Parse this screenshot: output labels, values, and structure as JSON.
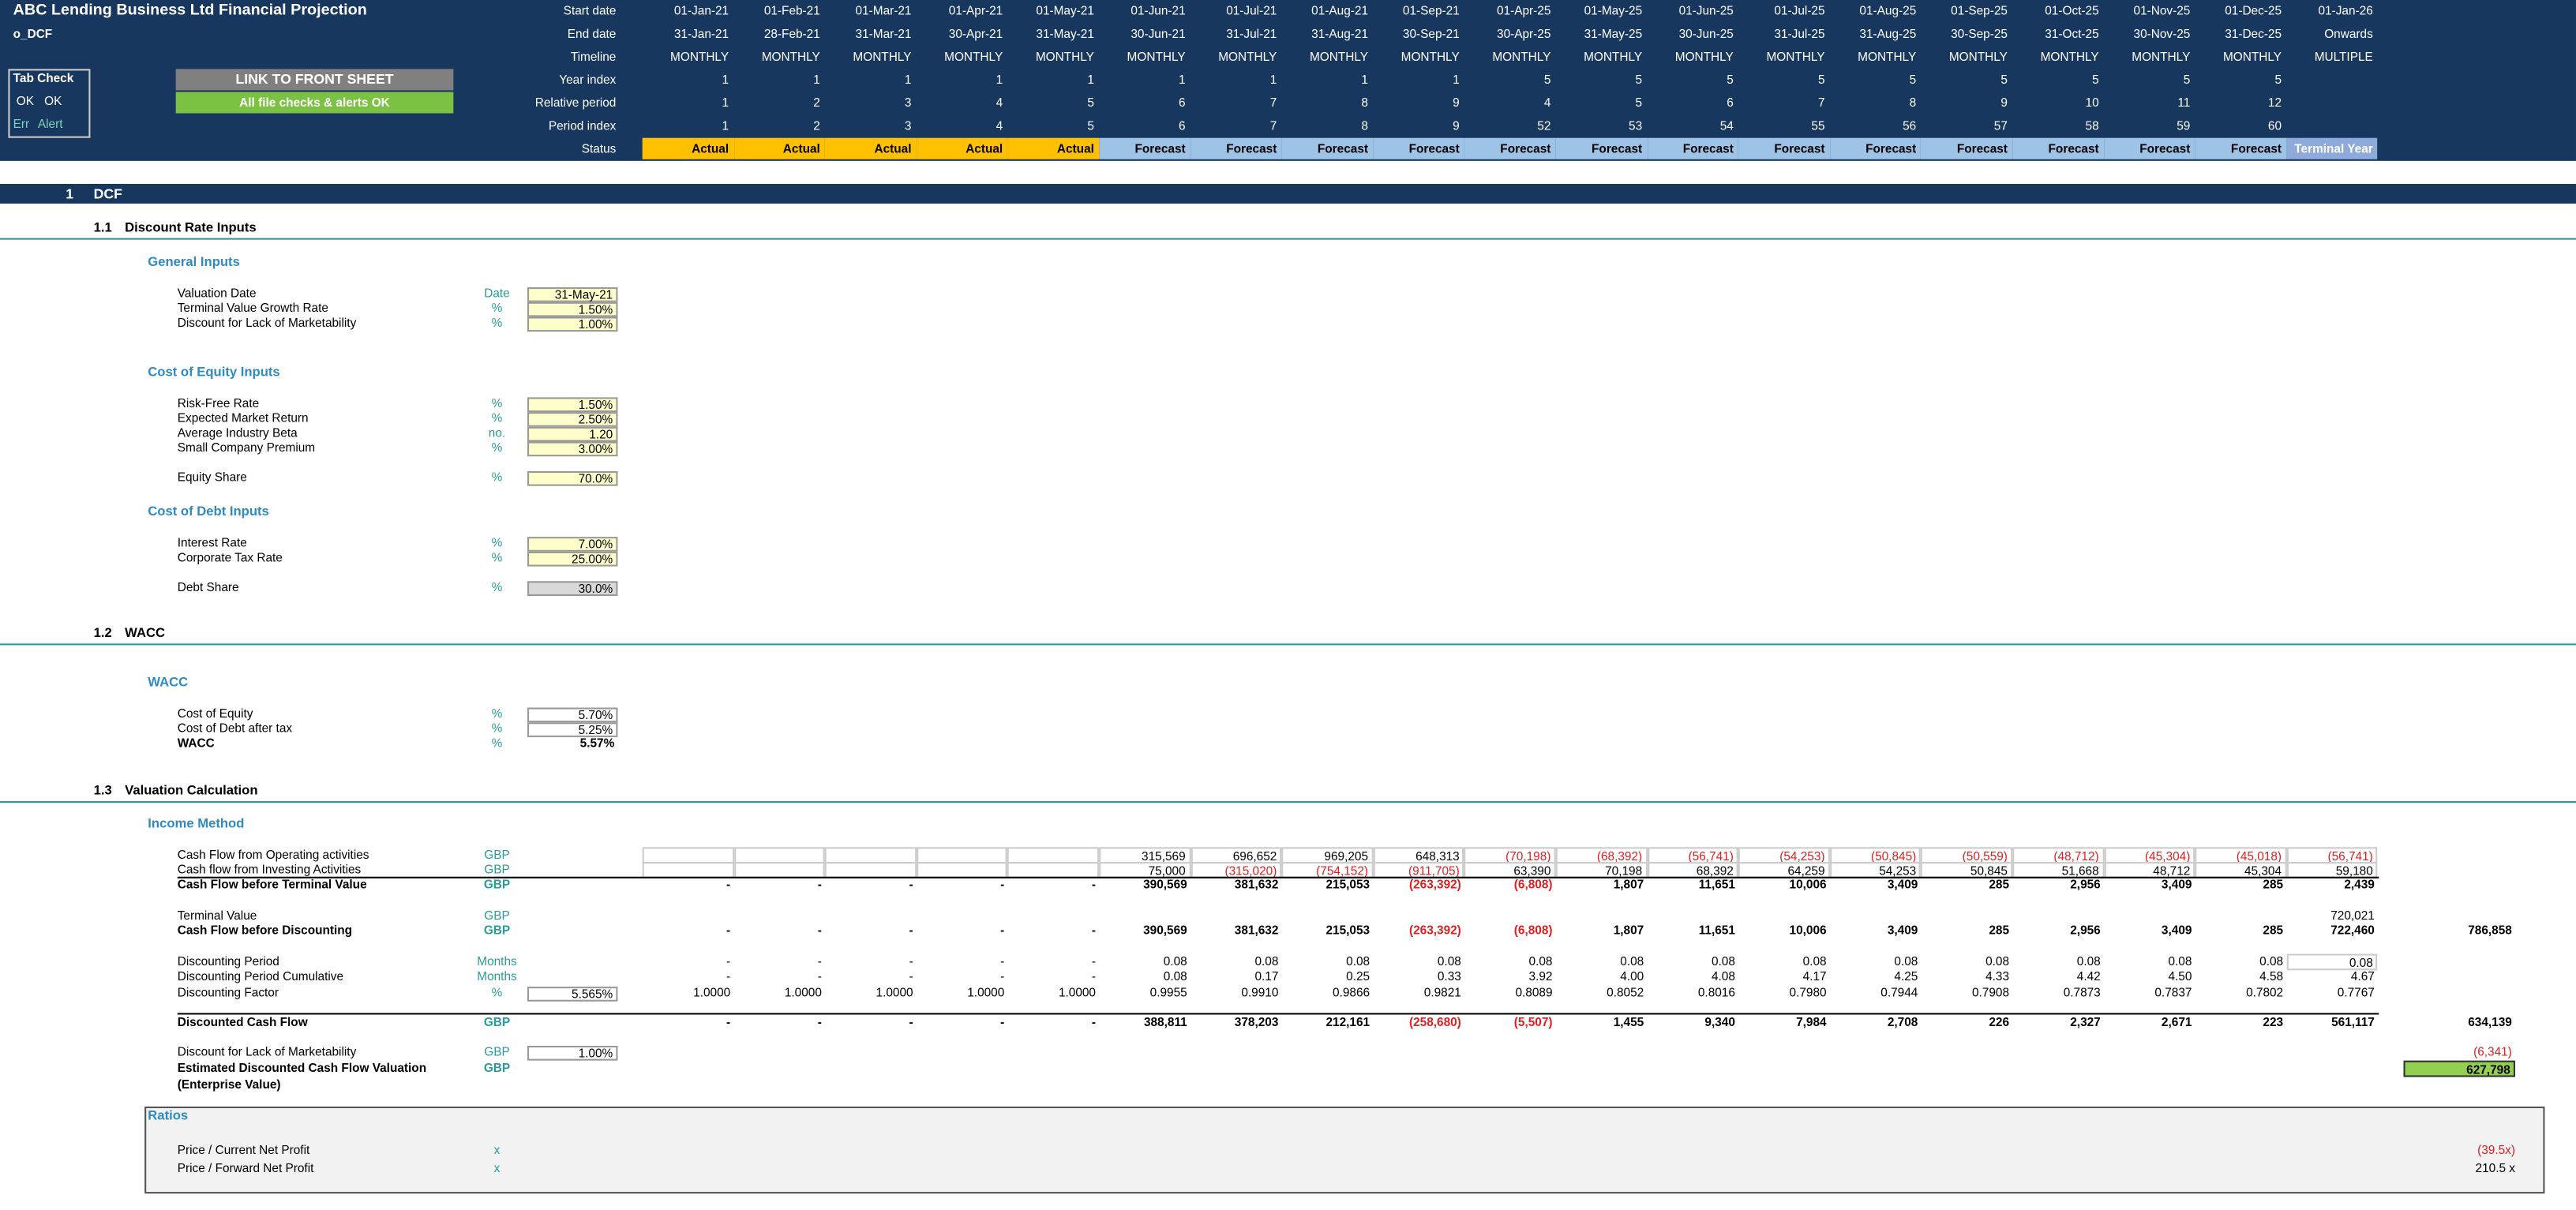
{
  "header": {
    "title": "ABC Lending Business Ltd Financial Projection",
    "sheet": "o_DCF",
    "tab_check": {
      "title": "Tab Check",
      "row1": [
        "OK",
        "OK"
      ],
      "row2": [
        "Err",
        "Alert"
      ]
    },
    "link_button": "LINK TO FRONT SHEET",
    "checks_status": "All file checks & alerts OK"
  },
  "timeline": {
    "rows": [
      {
        "label": "Start date",
        "values": [
          "01-Jan-21",
          "01-Feb-21",
          "01-Mar-21",
          "01-Apr-21",
          "01-May-21",
          "01-Jun-21",
          "01-Jul-21",
          "01-Aug-21",
          "01-Sep-21",
          "01-Apr-25",
          "01-May-25",
          "01-Jun-25",
          "01-Jul-25",
          "01-Aug-25",
          "01-Sep-25",
          "01-Oct-25",
          "01-Nov-25",
          "01-Dec-25",
          "01-Jan-26"
        ]
      },
      {
        "label": "End date",
        "values": [
          "31-Jan-21",
          "28-Feb-21",
          "31-Mar-21",
          "30-Apr-21",
          "31-May-21",
          "30-Jun-21",
          "31-Jul-21",
          "31-Aug-21",
          "30-Sep-21",
          "30-Apr-25",
          "31-May-25",
          "30-Jun-25",
          "31-Jul-25",
          "31-Aug-25",
          "30-Sep-25",
          "31-Oct-25",
          "30-Nov-25",
          "31-Dec-25",
          "Onwards"
        ]
      },
      {
        "label": "Timeline",
        "values": [
          "MONTHLY",
          "MONTHLY",
          "MONTHLY",
          "MONTHLY",
          "MONTHLY",
          "MONTHLY",
          "MONTHLY",
          "MONTHLY",
          "MONTHLY",
          "MONTHLY",
          "MONTHLY",
          "MONTHLY",
          "MONTHLY",
          "MONTHLY",
          "MONTHLY",
          "MONTHLY",
          "MONTHLY",
          "MONTHLY",
          "MULTIPLE"
        ]
      },
      {
        "label": "Year index",
        "values": [
          1,
          1,
          1,
          1,
          1,
          1,
          1,
          1,
          1,
          5,
          5,
          5,
          5,
          5,
          5,
          5,
          5,
          5,
          null
        ]
      },
      {
        "label": "Relative period",
        "values": [
          1,
          2,
          3,
          4,
          5,
          6,
          7,
          8,
          9,
          4,
          5,
          6,
          7,
          8,
          9,
          10,
          11,
          12,
          null
        ]
      },
      {
        "label": "Period index",
        "values": [
          1,
          2,
          3,
          4,
          5,
          6,
          7,
          8,
          9,
          52,
          53,
          54,
          55,
          56,
          57,
          58,
          59,
          60,
          null
        ]
      },
      {
        "label": "Status",
        "values": [
          "Actual",
          "Actual",
          "Actual",
          "Actual",
          "Actual",
          "Forecast",
          "Forecast",
          "Forecast",
          "Forecast",
          "Forecast",
          "Forecast",
          "Forecast",
          "Forecast",
          "Forecast",
          "Forecast",
          "Forecast",
          "Forecast",
          "Forecast",
          "Terminal Year"
        ]
      }
    ]
  },
  "section": {
    "number": "1",
    "title": "DCF"
  },
  "subsections": [
    {
      "number": "1.1",
      "title": "Discount Rate Inputs",
      "groups": [
        {
          "title": "General Inputs",
          "items": [
            {
              "label": "Valuation Date",
              "unit": "Date",
              "value": "31-May-21"
            },
            {
              "label": "Terminal Value Growth Rate",
              "unit": "%",
              "value": "1.50%"
            },
            {
              "label": "Discount for Lack of Marketability",
              "unit": "%",
              "value": "1.00%"
            }
          ]
        },
        {
          "title": "Cost of Equity Inputs",
          "items": [
            {
              "label": "Risk-Free Rate",
              "unit": "%",
              "value": "1.50%"
            },
            {
              "label": "Expected Market Return",
              "unit": "%",
              "value": "2.50%"
            },
            {
              "label": "Average Industry Beta",
              "unit": "no.",
              "value": "1.20"
            },
            {
              "label": "Small Company Premium",
              "unit": "%",
              "value": "3.00%"
            },
            {
              "label": "Equity Share",
              "unit": "%",
              "value": "70.0%"
            }
          ]
        },
        {
          "title": "Cost of Debt Inputs",
          "items": [
            {
              "label": "Interest Rate",
              "unit": "%",
              "value": "7.00%"
            },
            {
              "label": "Corporate Tax Rate",
              "unit": "%",
              "value": "25.00%"
            },
            {
              "label": "Debt Share",
              "unit": "%",
              "value": "30.0%"
            }
          ]
        }
      ]
    },
    {
      "number": "1.2",
      "title": "WACC",
      "groups": [
        {
          "title": "WACC",
          "items": [
            {
              "label": "Cost of Equity",
              "unit": "%",
              "value": "5.70%"
            },
            {
              "label": "Cost of Debt after tax",
              "unit": "%",
              "value": "5.25%"
            },
            {
              "label": "WACC",
              "unit": "%",
              "value": "5.57%"
            }
          ]
        }
      ]
    },
    {
      "number": "1.3",
      "title": "Valuation Calculation",
      "groups": [
        {
          "title": "Income Method",
          "rows": [
            {
              "label": "Cash Flow from Operating activities",
              "unit": "GBP",
              "values": [
                null,
                null,
                null,
                null,
                null,
                "315,569",
                "696,652",
                "969,205",
                "648,313",
                "(70,198)",
                "(68,392)",
                "(56,741)",
                "(54,253)",
                "(50,845)",
                "(50,559)",
                "(48,712)",
                "(45,304)",
                "(45,018)",
                "(56,741)"
              ]
            },
            {
              "label": "Cash flow from Investing Activities",
              "unit": "GBP",
              "values": [
                null,
                null,
                null,
                null,
                null,
                "75,000",
                "(315,020)",
                "(754,152)",
                "(911,705)",
                "63,390",
                "70,198",
                "68,392",
                "64,259",
                "54,253",
                "50,845",
                "51,668",
                "48,712",
                "45,304",
                "59,180"
              ]
            },
            {
              "label": "Cash Flow before Terminal Value",
              "unit": "GBP",
              "values": [
                "-",
                "-",
                "-",
                "-",
                "-",
                "390,569",
                "381,632",
                "215,053",
                "(263,392)",
                "(6,808)",
                "1,807",
                "11,651",
                "10,006",
                "3,409",
                "285",
                "2,956",
                "3,409",
                "285",
                "2,439"
              ]
            },
            {
              "label": "Terminal Value",
              "unit": "GBP",
              "values": [
                null,
                null,
                null,
                null,
                null,
                null,
                null,
                null,
                null,
                null,
                null,
                null,
                null,
                null,
                null,
                null,
                null,
                null,
                "720,021"
              ]
            },
            {
              "label": "Cash Flow before Discounting",
              "unit": "GBP",
              "values": [
                "-",
                "-",
                "-",
                "-",
                "-",
                "390,569",
                "381,632",
                "215,053",
                "(263,392)",
                "(6,808)",
                "1,807",
                "11,651",
                "10,006",
                "3,409",
                "285",
                "2,956",
                "3,409",
                "285",
                "722,460"
              ],
              "total": "786,858"
            },
            {
              "label": "Discounting Period",
              "unit": "Months",
              "values": [
                "-",
                "-",
                "-",
                "-",
                "-",
                "0.08",
                "0.08",
                "0.08",
                "0.08",
                "0.08",
                "0.08",
                "0.08",
                "0.08",
                "0.08",
                "0.08",
                "0.08",
                "0.08",
                "0.08",
                "0.08"
              ]
            },
            {
              "label": "Discounting Period Cumulative",
              "unit": "Months",
              "values": [
                "-",
                "-",
                "-",
                "-",
                "-",
                "0.08",
                "0.17",
                "0.25",
                "0.33",
                "3.92",
                "4.00",
                "4.08",
                "4.17",
                "4.25",
                "4.33",
                "4.42",
                "4.50",
                "4.58",
                "4.67"
              ]
            },
            {
              "label": "Discounting Factor",
              "unit": "%",
              "input": "5.565%",
              "values": [
                "1.0000",
                "1.0000",
                "1.0000",
                "1.0000",
                "1.0000",
                "0.9955",
                "0.9910",
                "0.9866",
                "0.9821",
                "0.8089",
                "0.8052",
                "0.8016",
                "0.7980",
                "0.7944",
                "0.7908",
                "0.7873",
                "0.7837",
                "0.7802",
                "0.7767"
              ]
            },
            {
              "label": "Discounted Cash Flow",
              "unit": "GBP",
              "values": [
                "-",
                "-",
                "-",
                "-",
                "-",
                "388,811",
                "378,203",
                "212,161",
                "(258,680)",
                "(5,507)",
                "1,455",
                "9,340",
                "7,984",
                "2,708",
                "226",
                "2,327",
                "2,671",
                "223",
                "561,117"
              ],
              "total": "634,139"
            },
            {
              "label": "Discount for Lack of Marketability",
              "unit": "GBP",
              "input": "1.00%",
              "total": "(6,341)"
            },
            {
              "label": "Estimated Discounted Cash Flow Valuation",
              "sublabel": "(Enterprise Value)",
              "unit": "GBP",
              "total": "627,798"
            }
          ]
        }
      ]
    }
  ],
  "ratios": {
    "title": "Ratios",
    "items": [
      {
        "label": "Price / Current Net Profit",
        "unit": "x",
        "value": "(39.5x)"
      },
      {
        "label": "Price / Forward Net Profit",
        "unit": "x",
        "value": "210.5 x"
      }
    ]
  }
}
